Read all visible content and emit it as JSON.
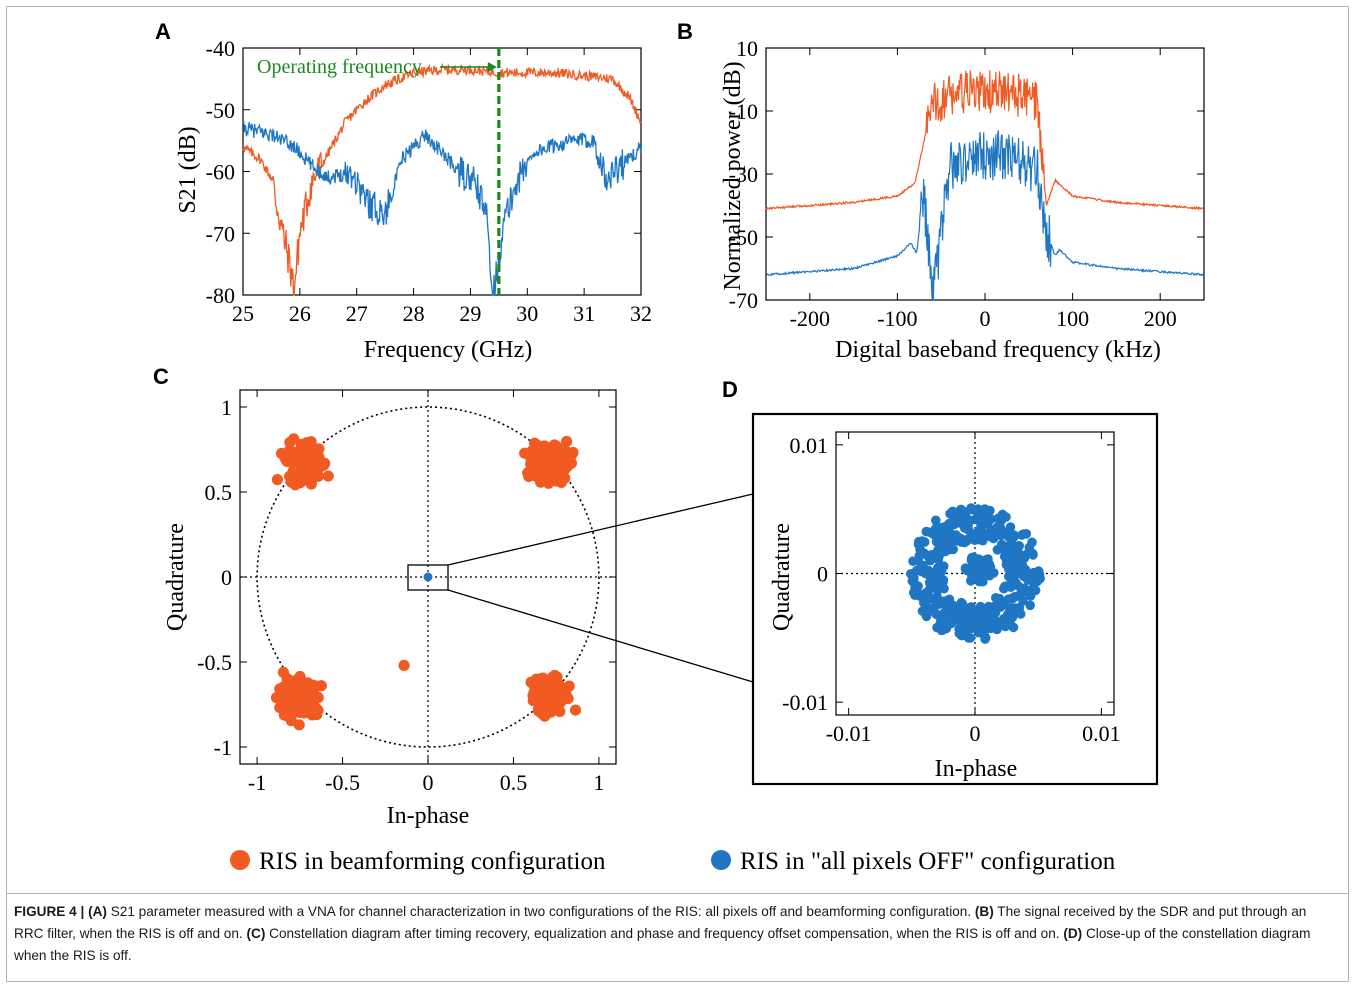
{
  "colors": {
    "orange": "#f15a22",
    "blue": "#1f77c4",
    "green": "#1a8a1a",
    "axis": "#000000"
  },
  "panels": {
    "A": {
      "letter": "A"
    },
    "B": {
      "letter": "B"
    },
    "C": {
      "letter": "C"
    },
    "D": {
      "letter": "D"
    }
  },
  "chart_data": [
    {
      "panel": "A",
      "type": "line",
      "xlabel": "Frequency (GHz)",
      "ylabel": "S21 (dB)",
      "xlim": [
        25,
        32
      ],
      "ylim": [
        -80,
        -40
      ],
      "xticks": [
        25,
        26,
        27,
        28,
        29,
        30,
        31,
        32
      ],
      "yticks": [
        -80,
        -70,
        -60,
        -50,
        -40
      ],
      "annotation": {
        "text": "Operating frequency",
        "x": 29.5
      },
      "series": [
        {
          "color": "orange",
          "x": [
            25,
            25.3,
            25.5,
            25.7,
            25.8,
            25.9,
            26.0,
            26.2,
            26.5,
            26.8,
            27.1,
            27.5,
            28.0,
            28.5,
            29.0,
            29.5,
            30.0,
            30.5,
            31.0,
            31.5,
            31.8,
            32
          ],
          "values": [
            -56,
            -58,
            -61,
            -70,
            -74,
            -79,
            -70,
            -62,
            -57,
            -52,
            -49,
            -46,
            -44,
            -43.5,
            -43.5,
            -44,
            -44,
            -44,
            -44.5,
            -45,
            -48,
            -52
          ]
        },
        {
          "color": "blue",
          "x": [
            25,
            25.5,
            25.9,
            26.2,
            26.5,
            26.9,
            27.2,
            27.5,
            27.8,
            28.2,
            28.5,
            28.8,
            29.1,
            29.3,
            29.4,
            29.6,
            29.8,
            30.1,
            30.4,
            30.8,
            31.2,
            31.4,
            31.5,
            31.8,
            32
          ],
          "values": [
            -53,
            -54,
            -56,
            -59,
            -61,
            -60,
            -65,
            -67,
            -58,
            -54,
            -57,
            -60,
            -62,
            -68,
            -80,
            -68,
            -62,
            -57,
            -56,
            -55,
            -55,
            -62,
            -60,
            -58,
            -56
          ]
        }
      ]
    },
    {
      "panel": "B",
      "type": "line",
      "xlabel": "Digital baseband frequency (kHz)",
      "ylabel": "Normalized power (dB)",
      "xlim": [
        -250,
        250
      ],
      "ylim": [
        -70,
        10
      ],
      "xticks": [
        -200,
        -100,
        0,
        100,
        200
      ],
      "yticks": [
        -70,
        -50,
        -30,
        -10,
        10
      ],
      "series": [
        {
          "color": "orange",
          "x": [
            -250,
            -150,
            -100,
            -80,
            -70,
            -60,
            -40,
            -20,
            0,
            20,
            40,
            60,
            70,
            80,
            100,
            150,
            250
          ],
          "values": [
            -41,
            -39,
            -37,
            -33,
            -20,
            -8,
            -5,
            -4,
            -4,
            -4,
            -5,
            -8,
            -40,
            -32,
            -37,
            -39,
            -41
          ]
        },
        {
          "color": "blue",
          "x": [
            -250,
            -150,
            -100,
            -85,
            -78,
            -70,
            -60,
            -40,
            -20,
            0,
            20,
            40,
            60,
            70,
            80,
            85,
            100,
            150,
            250
          ],
          "values": [
            -62,
            -60,
            -56,
            -52,
            -55,
            -35,
            -70,
            -28,
            -25,
            -24,
            -24,
            -26,
            -30,
            -48,
            -56,
            -54,
            -58,
            -60,
            -62
          ]
        }
      ]
    },
    {
      "panel": "C",
      "type": "scatter",
      "xlabel": "In-phase",
      "ylabel": "Quadrature",
      "xlim": [
        -1.1,
        1.1
      ],
      "ylim": [
        -1.1,
        1.1
      ],
      "xticks": [
        -1,
        -0.5,
        0,
        0.5,
        1
      ],
      "yticks": [
        -1,
        -0.5,
        0,
        0.5,
        1
      ],
      "xticklabels": [
        "-1",
        "-0.5",
        "0",
        "0.5",
        "1"
      ],
      "yticklabels": [
        "-1",
        "-0.5",
        "0",
        "0.5",
        "1"
      ],
      "unit_circle": true,
      "series": [
        {
          "name": "RIS in beamforming configuration",
          "color": "orange",
          "clusters": [
            {
              "cx": -0.72,
              "cy": 0.67
            },
            {
              "cx": 0.72,
              "cy": 0.67
            },
            {
              "cx": -0.75,
              "cy": -0.7
            },
            {
              "cx": 0.71,
              "cy": -0.68
            }
          ],
          "outliers": [
            {
              "x": -0.14,
              "y": -0.52
            }
          ]
        },
        {
          "name": "RIS in \"all pixels OFF\" configuration",
          "color": "blue",
          "clusters": [
            {
              "cx": 0,
              "cy": 0
            }
          ]
        }
      ]
    },
    {
      "panel": "D",
      "type": "scatter",
      "xlabel": "In-phase",
      "ylabel": "Quadrature",
      "xlim": [
        -0.011,
        0.011
      ],
      "ylim": [
        -0.011,
        0.011
      ],
      "xticks": [
        -0.01,
        0,
        0.01
      ],
      "yticks": [
        -0.01,
        0,
        0.01
      ],
      "xticklabels": [
        "-0.01",
        "0",
        "0.01"
      ],
      "yticklabels": [
        "-0.01",
        "0",
        "0.01"
      ],
      "series": [
        {
          "color": "blue",
          "shape": "ring",
          "inner_radius": 0.0025,
          "outer_radius": 0.0052,
          "center_blob_radius": 0.0012
        }
      ]
    }
  ],
  "legend": {
    "items": [
      {
        "label": "RIS in beamforming configuration",
        "color": "orange"
      },
      {
        "label": "RIS in \"all pixels OFF\" configuration",
        "color": "blue"
      }
    ]
  },
  "caption": {
    "figure": "FIGURE 4 |",
    "A_tag": "(A)",
    "A_text": " S21 parameter measured with a VNA for channel characterization in two configurations of the RIS: all pixels off and beamforming configuration. ",
    "B_tag": "(B)",
    "B_text": " The signal received by the SDR and put through an RRC filter, when the RIS is off and on. ",
    "C_tag": "(C)",
    "C_text": " Constellation diagram after timing recovery, equalization and phase and frequency offset compensation, when the RIS is off and on. ",
    "D_tag": "(D)",
    "D_text": " Close-up of the constellation diagram when the RIS is off."
  }
}
